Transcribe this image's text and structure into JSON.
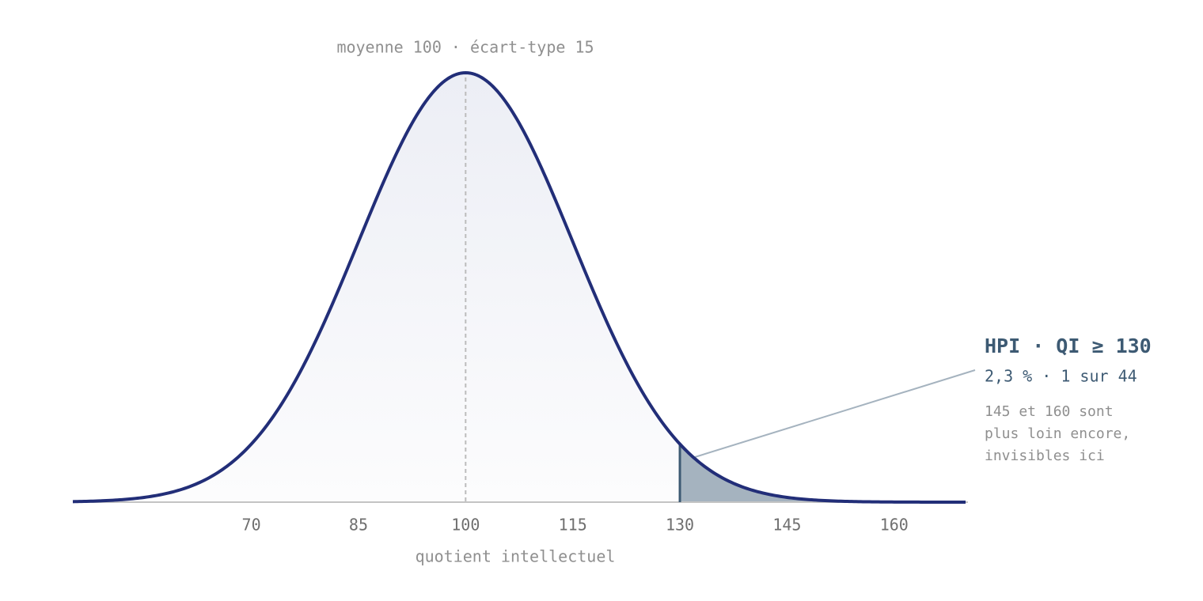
{
  "chart_data": {
    "type": "density",
    "title": "moyenne 100 · écart-type 15",
    "mean": 100,
    "sd": 15,
    "threshold": 130,
    "xlabel": "quotient intellectuel",
    "xlim": [
      45,
      170
    ],
    "xticks": [
      70,
      85,
      100,
      115,
      130,
      145,
      160
    ],
    "color": "#222e78",
    "fill_color": "#eceef5",
    "tail_color": "#a5b3bf",
    "tail_edge_color": "#3d5a73",
    "annotation": {
      "title": "HPI · QI ≥ 130",
      "subtitle": "2,3 % · 1 sur 44",
      "note": [
        "145 et 160 sont",
        "plus loin encore,",
        "invisibles ici"
      ]
    }
  }
}
